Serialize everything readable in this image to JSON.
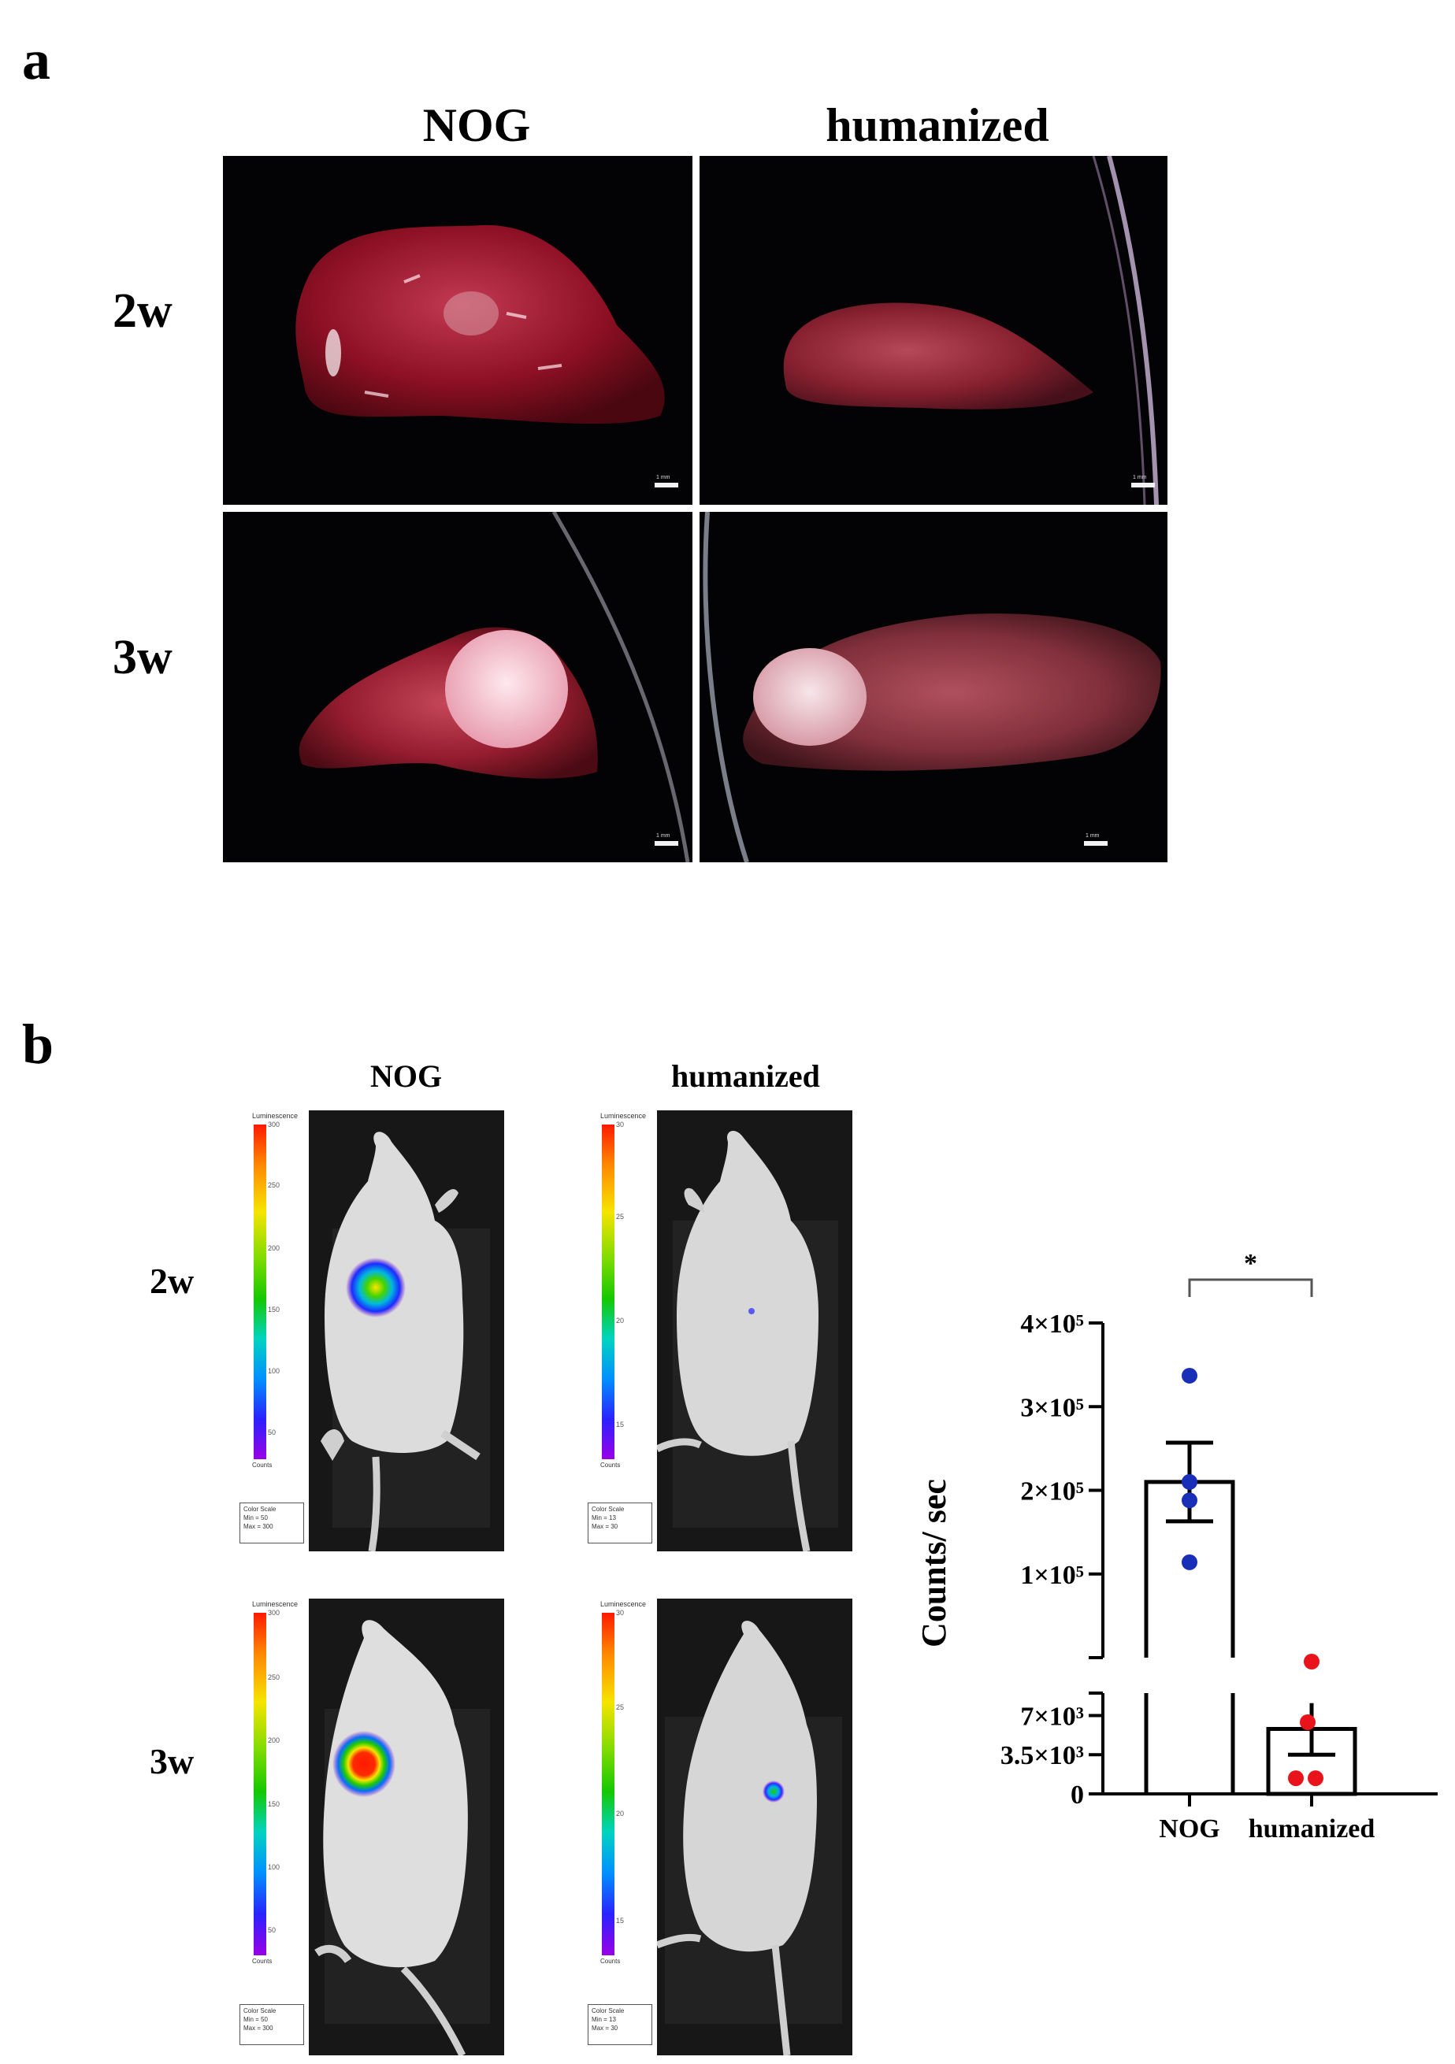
{
  "panel_a": {
    "label": "a",
    "columns": [
      "NOG",
      "humanized"
    ],
    "rows": [
      "2w",
      "3w"
    ],
    "scale_bar_text": "1 mm"
  },
  "panel_b": {
    "label": "b",
    "columns": [
      "NOG",
      "humanized"
    ],
    "rows": [
      "2w",
      "3w"
    ],
    "images": [
      {
        "title": "Luminescence",
        "ticks": [
          "300",
          "250",
          "200",
          "150",
          "100",
          "50"
        ],
        "counts": "Counts",
        "color_scale": {
          "title": "Color Scale",
          "min": "Min = 50",
          "max": "Max = 300"
        }
      },
      {
        "title": "Luminescence",
        "ticks": [
          "30",
          "25",
          "20",
          "15"
        ],
        "counts": "Counts",
        "color_scale": {
          "title": "Color Scale",
          "min": "Min = 13",
          "max": "Max = 30"
        }
      },
      {
        "title": "Luminescence",
        "ticks": [
          "300",
          "250",
          "200",
          "150",
          "100",
          "50"
        ],
        "counts": "Counts",
        "color_scale": {
          "title": "Color Scale",
          "min": "Min = 50",
          "max": "Max = 300"
        }
      },
      {
        "title": "Luminescence",
        "ticks": [
          "30",
          "25",
          "20",
          "15"
        ],
        "counts": "Counts",
        "color_scale": {
          "title": "Color Scale",
          "min": "Min = 13",
          "max": "Max = 30"
        }
      }
    ]
  },
  "chart_data": {
    "type": "bar",
    "categories": [
      "NOG",
      "humanized"
    ],
    "ylabel": "Counts/ sec",
    "y_axis_broken": true,
    "upper_segment": {
      "ylim": [
        0,
        400000
      ],
      "ticks": [
        100000,
        200000,
        300000,
        400000
      ],
      "tick_labels": [
        "1×10⁵",
        "2×10⁵",
        "3×10⁵",
        "4×10⁵"
      ]
    },
    "lower_segment": {
      "ylim": [
        0,
        9000
      ],
      "ticks": [
        0,
        3500,
        7000
      ],
      "tick_labels": [
        "0",
        "3.5×10³",
        "7×10³"
      ]
    },
    "series": [
      {
        "category": "NOG",
        "mean": 210000,
        "sem": 47000,
        "points": [
          337000,
          210000,
          188000,
          114000
        ],
        "color": "#1a2fb8"
      },
      {
        "category": "humanized",
        "mean": 5800,
        "sem": 2300,
        "points": [
          14500,
          6400,
          1400,
          1400
        ],
        "color": "#e8131b"
      }
    ],
    "significance": {
      "text": "*",
      "between": [
        "NOG",
        "humanized"
      ]
    }
  }
}
